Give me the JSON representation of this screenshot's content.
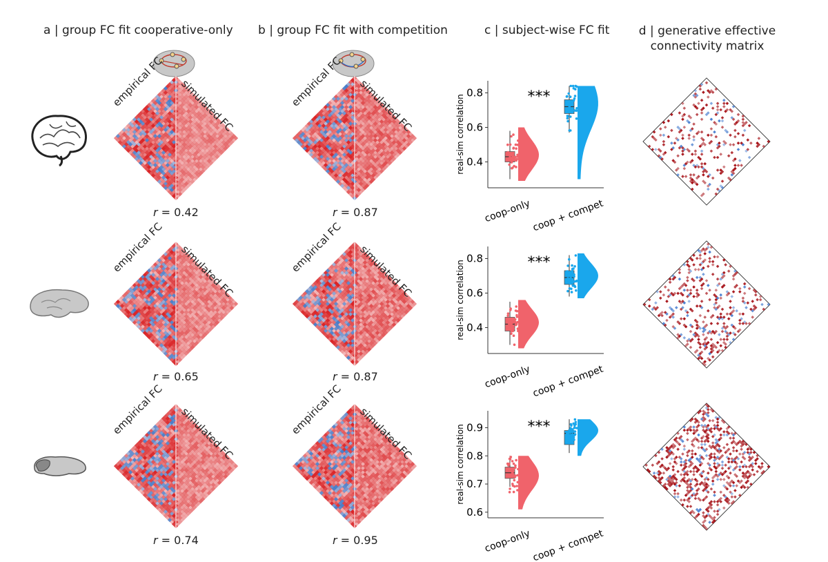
{
  "panels": {
    "a": {
      "title": "a | group FC fit cooperative-only"
    },
    "b": {
      "title": "b | group FC fit with competition"
    },
    "c": {
      "title": "c | subject-wise FC fit"
    },
    "d": {
      "title_line1": "d | generative effective",
      "title_line2": "connectivity matrix"
    }
  },
  "matrix_labels": {
    "empirical": "empirical FC",
    "simulated": "simulated FC"
  },
  "rows": [
    {
      "species": "human",
      "r_a_label": "r",
      "r_a_value": "= 0.42",
      "r_b_label": "r",
      "r_b_value": "= 0.87"
    },
    {
      "species": "macaque",
      "r_a_label": "r",
      "r_a_value": "= 0.65",
      "r_b_label": "r",
      "r_b_value": "= 0.87"
    },
    {
      "species": "mouse",
      "r_a_label": "r",
      "r_a_value": "= 0.74",
      "r_b_label": "r",
      "r_b_value": "= 0.95"
    }
  ],
  "colors": {
    "coop": "#f0636b",
    "compet": "#1aa7ec",
    "pos": "#d7191c",
    "neg": "#2b6cc4"
  },
  "chart_data": [
    {
      "type": "raincloud",
      "species": "human",
      "ylabel": "real-sim correlation",
      "ylim": [
        0.25,
        0.87
      ],
      "yticks": [
        "0.4",
        "0.6",
        "0.8"
      ],
      "categories": [
        "coop-only",
        "coop + compet"
      ],
      "significance": "***",
      "series": [
        {
          "name": "coop-only",
          "median": 0.43,
          "q1": 0.4,
          "q3": 0.46,
          "min": 0.3,
          "max": 0.58,
          "kde_peak": 0.44,
          "range": [
            0.29,
            0.6
          ]
        },
        {
          "name": "coop + compet",
          "median": 0.72,
          "q1": 0.68,
          "q3": 0.76,
          "min": 0.57,
          "max": 0.84,
          "kde_peak": 0.74,
          "range": [
            0.3,
            0.84
          ]
        }
      ]
    },
    {
      "type": "raincloud",
      "species": "macaque",
      "ylabel": "real-sim correlation",
      "ylim": [
        0.25,
        0.87
      ],
      "yticks": [
        "0.4",
        "0.6",
        "0.8"
      ],
      "categories": [
        "coop-only",
        "coop + compet"
      ],
      "significance": "***",
      "series": [
        {
          "name": "coop-only",
          "median": 0.42,
          "q1": 0.38,
          "q3": 0.46,
          "min": 0.3,
          "max": 0.55,
          "kde_peak": 0.43,
          "range": [
            0.28,
            0.56
          ]
        },
        {
          "name": "coop + compet",
          "median": 0.69,
          "q1": 0.65,
          "q3": 0.73,
          "min": 0.58,
          "max": 0.82,
          "kde_peak": 0.7,
          "range": [
            0.57,
            0.83
          ]
        }
      ]
    },
    {
      "type": "raincloud",
      "species": "mouse",
      "ylabel": "real-sim correlation",
      "ylim": [
        0.58,
        0.96
      ],
      "yticks": [
        "0.6",
        "0.7",
        "0.8",
        "0.9"
      ],
      "categories": [
        "coop-only",
        "coop + compet"
      ],
      "significance": "***",
      "series": [
        {
          "name": "coop-only",
          "median": 0.74,
          "q1": 0.72,
          "q3": 0.76,
          "min": 0.69,
          "max": 0.8,
          "kde_peak": 0.73,
          "range": [
            0.61,
            0.8
          ]
        },
        {
          "name": "coop + compet",
          "median": 0.88,
          "q1": 0.84,
          "q3": 0.89,
          "min": 0.81,
          "max": 0.93,
          "kde_peak": 0.89,
          "range": [
            0.8,
            0.93
          ]
        }
      ]
    }
  ]
}
